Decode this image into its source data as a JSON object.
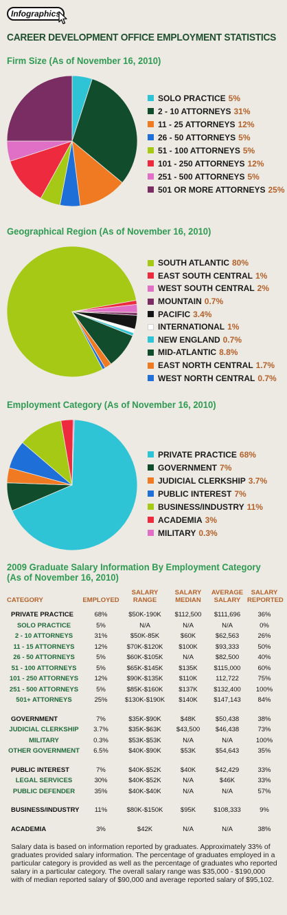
{
  "badge": "Infographics",
  "main_title": "CAREER DEVELOPMENT OFFICE EMPLOYMENT STATISTICS",
  "sections": {
    "firm_size": "Firm Size (As of November 16, 2010)",
    "geo": "Geographical Region (As of November 16, 2010)",
    "employment": "Employment Category (As of November 16, 2010)",
    "salary_line1": "2009 Graduate Salary Information By Employment Category",
    "salary_line2": "(As of November 16, 2010)"
  },
  "chart_data": [
    {
      "type": "pie",
      "title": "Firm Size (As of November 16, 2010)",
      "slices": [
        {
          "label": "SOLO PRACTICE",
          "pct_label": "5%",
          "value": 5,
          "color": "#2ec4d6"
        },
        {
          "label": "2 - 10 ATTORNEYS",
          "pct_label": "31%",
          "value": 31,
          "color": "#114d2c"
        },
        {
          "label": "11 - 25 ATTORNEYS",
          "pct_label": "12%",
          "value": 12,
          "color": "#f07a22"
        },
        {
          "label": "26 - 50 ATTORNEYS",
          "pct_label": "5%",
          "value": 5,
          "color": "#1f6fd8"
        },
        {
          "label": "51 - 100 ATTORNEYS",
          "pct_label": "5%",
          "value": 5,
          "color": "#a5c914"
        },
        {
          "label": "101 - 250 ATTORNEYS",
          "pct_label": "12%",
          "value": 12,
          "color": "#ee2a3f"
        },
        {
          "label": "251 - 500 ATTORNEYS",
          "pct_label": "5%",
          "value": 5,
          "color": "#e06fc6"
        },
        {
          "label": "501 OR MORE ATTORNEYS",
          "pct_label": "25%",
          "value": 25,
          "color": "#7a2d62"
        }
      ]
    },
    {
      "type": "pie",
      "title": "Geographical Region (As of November 16, 2010)",
      "slices": [
        {
          "label": "SOUTH ATLANTIC",
          "pct_label": "80%",
          "value": 80,
          "color": "#a5c914"
        },
        {
          "label": "EAST SOUTH CENTRAL",
          "pct_label": "1%",
          "value": 1,
          "color": "#ee2a3f"
        },
        {
          "label": "WEST SOUTH CENTRAL",
          "pct_label": "2%",
          "value": 2,
          "color": "#e06fc6"
        },
        {
          "label": "MOUNTAIN",
          "pct_label": "0.7%",
          "value": 0.7,
          "color": "#7a2d62"
        },
        {
          "label": "PACIFIC",
          "pct_label": "3.4%",
          "value": 3.4,
          "color": "#151515"
        },
        {
          "label": "INTERNATIONAL",
          "pct_label": "1%",
          "value": 1,
          "color": "#ffffff"
        },
        {
          "label": "NEW ENGLAND",
          "pct_label": "0.7%",
          "value": 0.7,
          "color": "#2ec4d6"
        },
        {
          "label": "MID-ATLANTIC",
          "pct_label": "8.8%",
          "value": 8.8,
          "color": "#114d2c"
        },
        {
          "label": "EAST NORTH CENTRAL",
          "pct_label": "1.7%",
          "value": 1.7,
          "color": "#f07a22"
        },
        {
          "label": "WEST NORTH CENTRAL",
          "pct_label": "0.7%",
          "value": 0.7,
          "color": "#1f6fd8"
        }
      ]
    },
    {
      "type": "pie",
      "title": "Employment Category (As of November 16, 2010)",
      "slices": [
        {
          "label": "PRIVATE PRACTICE",
          "pct_label": "68%",
          "value": 68,
          "color": "#2ec4d6"
        },
        {
          "label": "GOVERNMENT",
          "pct_label": "7%",
          "value": 7,
          "color": "#114d2c"
        },
        {
          "label": "JUDICIAL CLERKSHIP",
          "pct_label": "3.7%",
          "value": 3.7,
          "color": "#f07a22"
        },
        {
          "label": "PUBLIC INTEREST",
          "pct_label": "7%",
          "value": 7,
          "color": "#1f6fd8"
        },
        {
          "label": "BUSINESS/INDUSTRY",
          "pct_label": "11%",
          "value": 11,
          "color": "#a5c914"
        },
        {
          "label": "ACADEMIA",
          "pct_label": "3%",
          "value": 3,
          "color": "#ee2a3f"
        },
        {
          "label": "MILITARY",
          "pct_label": "0.3%",
          "value": 0.3,
          "color": "#e06fc6"
        }
      ]
    },
    {
      "type": "table",
      "columns": [
        "CATEGORY",
        "EMPLOYED",
        "SALARY RANGE",
        "SALARY MEDIAN",
        "AVERAGE SALARY",
        "SALARY REPORTED"
      ],
      "rows": [
        {
          "kind": "main",
          "cells": [
            "PRIVATE PRACTICE",
            "68%",
            "$50K-190K",
            "$112,500",
            "$111,696",
            "36%"
          ]
        },
        {
          "kind": "sub",
          "cells": [
            "SOLO PRACTICE",
            "5%",
            "N/A",
            "N/A",
            "N/A",
            "0%"
          ]
        },
        {
          "kind": "sub",
          "cells": [
            "2 - 10 ATTORNEYS",
            "31%",
            "$50K-85K",
            "$60K",
            "$62,563",
            "26%"
          ]
        },
        {
          "kind": "sub",
          "cells": [
            "11 - 15 ATTORNEYS",
            "12%",
            "$70K-$120K",
            "$100K",
            "$93,333",
            "50%"
          ]
        },
        {
          "kind": "sub",
          "cells": [
            "26 - 50 ATTORNEYS",
            "5%",
            "$60K-$105K",
            "N/A",
            "$82,500",
            "40%"
          ]
        },
        {
          "kind": "sub",
          "cells": [
            "51 - 100 ATTORNEYS",
            "5%",
            "$65K-$145K",
            "$135K",
            "$115,000",
            "60%"
          ]
        },
        {
          "kind": "sub",
          "cells": [
            "101 - 250 ATTORNEYS",
            "12%",
            "$90K-$135K",
            "$110K",
            "112,722",
            "75%"
          ]
        },
        {
          "kind": "sub",
          "cells": [
            "251 - 500 ATTORNEYS",
            "5%",
            "$85K-$160K",
            "$137K",
            "$132,400",
            "100%"
          ]
        },
        {
          "kind": "sub",
          "cells": [
            "501+ ATTORNEYS",
            "25%",
            "$130K-$190K",
            "$140K",
            "$147,143",
            "84%"
          ]
        },
        {
          "kind": "gap",
          "cells": []
        },
        {
          "kind": "main",
          "cells": [
            "GOVERNMENT",
            "7%",
            "$35K-$90K",
            "$48K",
            "$50,438",
            "38%"
          ]
        },
        {
          "kind": "sub",
          "cells": [
            "JUDICIAL CLERKSHIP",
            "3.7%",
            "$35K-$63K",
            "$43,500",
            "$46,438",
            "73%"
          ]
        },
        {
          "kind": "sub",
          "cells": [
            "MILITARY",
            "0.3%",
            "$53K-$53K",
            "N/A",
            "N/A",
            "100%"
          ]
        },
        {
          "kind": "sub",
          "cells": [
            "OTHER GOVERNMENT",
            "6.5%",
            "$40K-$90K",
            "$53K",
            "$54,643",
            "35%"
          ]
        },
        {
          "kind": "gap",
          "cells": []
        },
        {
          "kind": "main",
          "cells": [
            "PUBLIC INTEREST",
            "7%",
            "$40K-$52K",
            "$40K",
            "$42,429",
            "33%"
          ]
        },
        {
          "kind": "sub",
          "cells": [
            "LEGAL SERVICES",
            "30%",
            "$40K-$52K",
            "N/A",
            "$46K",
            "33%"
          ]
        },
        {
          "kind": "sub",
          "cells": [
            "PUBLIC DEFENDER",
            "35%",
            "$40K-$40K",
            "N/A",
            "N/A",
            "57%"
          ]
        },
        {
          "kind": "gap",
          "cells": []
        },
        {
          "kind": "main",
          "cells": [
            "BUSINESS/INDUSTRY",
            "11%",
            "$80K-$150K",
            "$95K",
            "$108,333",
            "9%"
          ]
        },
        {
          "kind": "gap",
          "cells": []
        },
        {
          "kind": "main",
          "cells": [
            "ACADEMIA",
            "3%",
            "$42K",
            "N/A",
            "N/A",
            "38%"
          ]
        }
      ]
    }
  ],
  "note": "Salary data is based on information reported by graduates. Approximately 33% of graduates provided salary information. The percentage of graduates employed in a particular category is provided as well as the percentage of graduates who reported salary in a particular category. The overall salary range was $35,000 - $190,000 with of median reported salary of $90,000 and average reported salary of $95,102."
}
